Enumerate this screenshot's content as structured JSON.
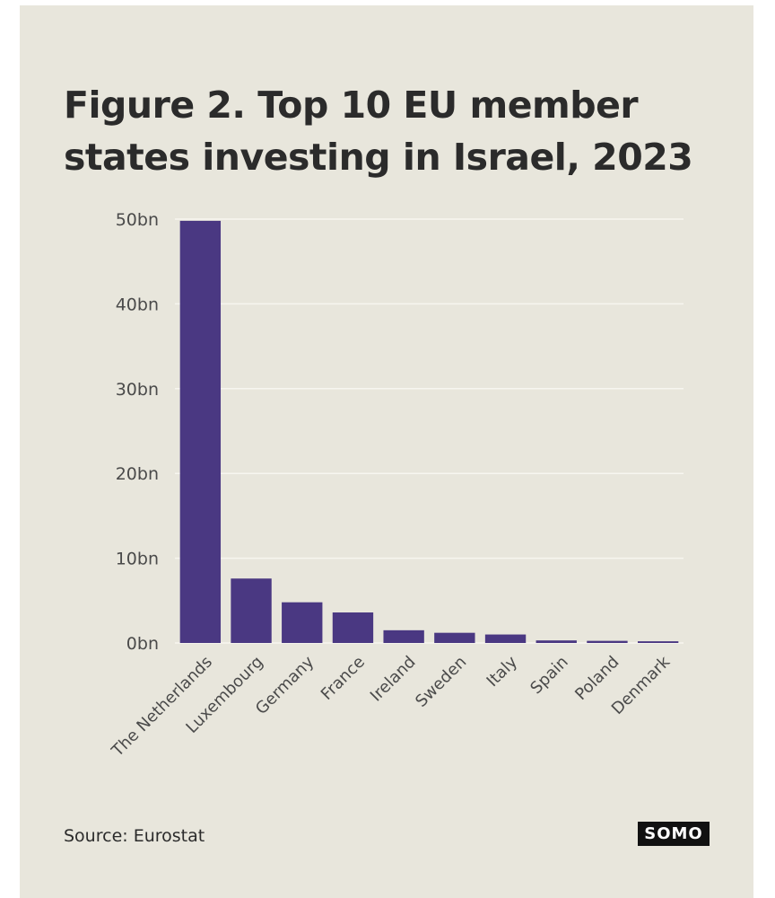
{
  "title": {
    "line1": "Figure 2. Top 10 EU member",
    "line2": "states investing in Israel, 2023"
  },
  "source": "Source: Eurostat",
  "logo": "SOMO",
  "colors": {
    "bar": "#4a3882",
    "background": "#e8e6dc",
    "grid": "#f7f6f0",
    "text": "#2b2b2b"
  },
  "chart_data": {
    "type": "bar",
    "title": "Figure 2. Top 10 EU member states investing in Israel, 2023",
    "categories": [
      "The Netherlands",
      "Luxembourg",
      "Germany",
      "France",
      "Ireland",
      "Sweden",
      "Italy",
      "Spain",
      "Poland",
      "Denmark"
    ],
    "values": [
      49.8,
      7.6,
      4.8,
      3.6,
      1.5,
      1.2,
      1.0,
      0.3,
      0.25,
      0.2
    ],
    "unit": "bn",
    "ylim": [
      0,
      50
    ],
    "yticks": [
      0,
      10,
      20,
      30,
      40,
      50
    ],
    "ytick_labels": [
      "0bn",
      "10bn",
      "20bn",
      "30bn",
      "40bn",
      "50bn"
    ],
    "xlabel": "",
    "ylabel": "",
    "grid": true,
    "legend": "none"
  }
}
